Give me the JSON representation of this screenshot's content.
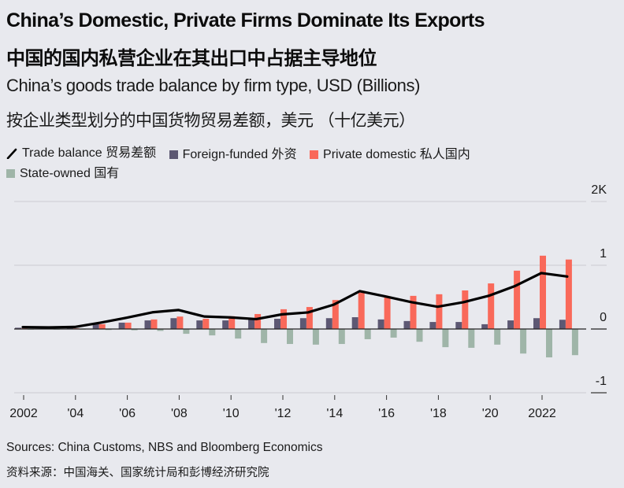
{
  "title": "China’s Domestic, Private Firms Dominate Its Exports",
  "title_cn": "中国的国内私营企业在其出口中占据主导地位",
  "subtitle": "China’s goods trade balance by firm type, USD (Billions)",
  "subtitle_cn": "按企业类型划分的中国货物贸易差额，美元 （十亿美元）",
  "legend": [
    {
      "label": "Trade balance 贸易差额",
      "icon": "line-icon",
      "color": "#000000"
    },
    {
      "label": "Foreign-funded 外资",
      "icon": "square-icon",
      "color": "#5d5873"
    },
    {
      "label": "Private domestic 私人国内",
      "icon": "square-icon",
      "color": "#f9695a"
    },
    {
      "label": "State-owned 国有",
      "icon": "square-icon",
      "color": "#9fb5a8"
    }
  ],
  "footer": {
    "sources": "Sources: China Customs, NBS and Bloomberg Economics",
    "sources_cn": "资料来源：中国海关、国家统计局和彭博经济研究院"
  },
  "chart_data": {
    "type": "bar",
    "title": "China’s Domestic, Private Firms Dominate Its Exports",
    "subtitle": "China’s goods trade balance by firm type, USD (Billions)",
    "xlabel": "",
    "ylabel": "USD (Billions)",
    "ylim": [
      -1000,
      2000
    ],
    "y_ticks": [
      {
        "value": 2000,
        "label": "2K"
      },
      {
        "value": 1000,
        "label": "1"
      },
      {
        "value": 0,
        "label": "0"
      },
      {
        "value": -1000,
        "label": "-1"
      }
    ],
    "y_axis_position": "right",
    "grid": true,
    "legend_position": "top-left",
    "x": [
      2002,
      2003,
      2004,
      2005,
      2006,
      2007,
      2008,
      2009,
      2010,
      2011,
      2012,
      2013,
      2014,
      2015,
      2016,
      2017,
      2018,
      2019,
      2020,
      2021,
      2022,
      2023
    ],
    "x_ticks": [
      {
        "value": 2002,
        "label": "2002"
      },
      {
        "value": 2004,
        "label": "'04"
      },
      {
        "value": 2006,
        "label": "'06"
      },
      {
        "value": 2008,
        "label": "'08"
      },
      {
        "value": 2010,
        "label": "'10"
      },
      {
        "value": 2012,
        "label": "'12"
      },
      {
        "value": 2014,
        "label": "'14"
      },
      {
        "value": 2016,
        "label": "'16"
      },
      {
        "value": 2018,
        "label": "'18"
      },
      {
        "value": 2020,
        "label": "'20"
      },
      {
        "value": 2022,
        "label": "2022"
      }
    ],
    "series": [
      {
        "name": "Foreign-funded 外资",
        "kind": "bar",
        "color": "#5d5873",
        "values": [
          20,
          10,
          15,
          75,
          100,
          135,
          170,
          135,
          135,
          150,
          160,
          170,
          170,
          185,
          150,
          125,
          110,
          110,
          75,
          135,
          170,
          145
        ]
      },
      {
        "name": "Private domestic 私人国内",
        "kind": "bar",
        "color": "#f9695a",
        "values": [
          10,
          10,
          10,
          75,
          100,
          150,
          195,
          160,
          200,
          235,
          310,
          345,
          455,
          570,
          495,
          520,
          545,
          605,
          715,
          915,
          1150,
          1090
        ]
      },
      {
        "name": "State-owned 国有",
        "kind": "bar",
        "color": "#9fb5a8",
        "values": [
          -5,
          -5,
          -5,
          -15,
          -20,
          -30,
          -75,
          -100,
          -150,
          -220,
          -235,
          -245,
          -235,
          -160,
          -135,
          -200,
          -285,
          -295,
          -245,
          -385,
          -445,
          -410
        ]
      },
      {
        "name": "Trade balance 贸易差额",
        "kind": "line",
        "color": "#000000",
        "values": [
          30,
          25,
          32,
          100,
          177,
          262,
          298,
          196,
          182,
          155,
          230,
          260,
          383,
          594,
          510,
          420,
          350,
          421,
          524,
          676,
          877,
          823
        ]
      }
    ]
  }
}
